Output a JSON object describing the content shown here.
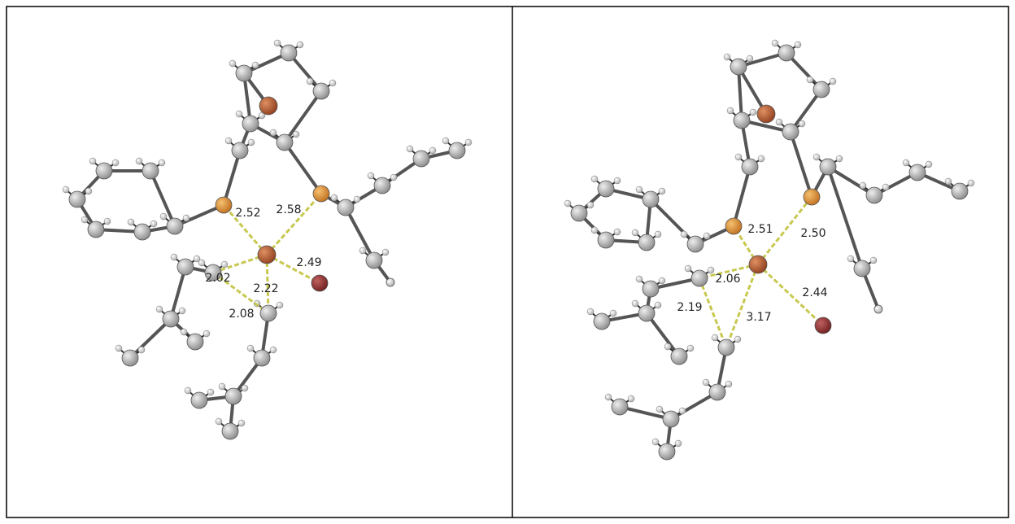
{
  "panels": [
    {
      "distances": [
        "2.52",
        "2.58",
        "2.49",
        "2.02",
        "2.22",
        "2.08"
      ]
    },
    {
      "distances": [
        "2.51",
        "2.50",
        "2.06",
        "2.44",
        "2.19",
        "3.17"
      ]
    }
  ]
}
